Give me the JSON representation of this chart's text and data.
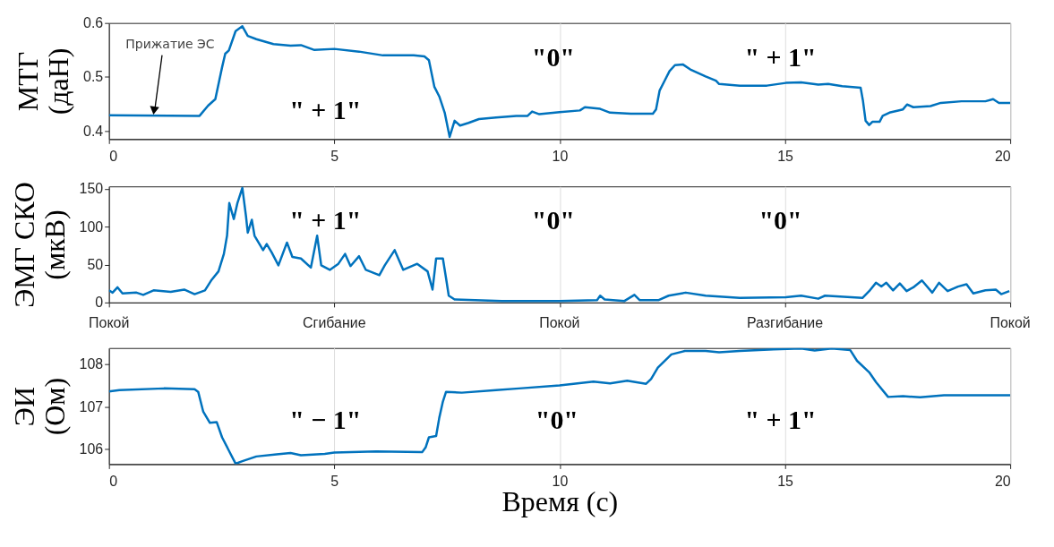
{
  "chart_data": [
    {
      "type": "line",
      "ylabel": "МТГ\n(даН)",
      "color": "#0072bd",
      "xlim": [
        0,
        20
      ],
      "xticks": [
        0,
        5,
        10,
        15,
        20
      ],
      "ylim": [
        0.385,
        0.6
      ],
      "yticks": [
        0.4,
        0.5,
        0.6
      ],
      "grid": "x",
      "line_style": "solid",
      "x": [
        0,
        2.01,
        2.2,
        2.36,
        2.51,
        2.58,
        2.66,
        2.81,
        2.96,
        3.08,
        3.27,
        3.65,
        4.03,
        4.26,
        4.56,
        5.0,
        5.55,
        6.08,
        6.76,
        7.0,
        7.1,
        7.22,
        7.33,
        7.45,
        7.56,
        7.67,
        7.79,
        7.98,
        8.21,
        8.59,
        9.04,
        9.29,
        9.39,
        9.55,
        10.0,
        10.45,
        10.56,
        10.9,
        11.12,
        11.58,
        12.07,
        12.14,
        12.22,
        12.33,
        12.44,
        12.56,
        12.74,
        12.9,
        13.24,
        13.47,
        13.54,
        14.0,
        14.6,
        15.02,
        15.36,
        15.74,
        15.96,
        16.27,
        16.68,
        16.73,
        16.79,
        16.87,
        16.94,
        17.1,
        17.17,
        17.32,
        17.62,
        17.71,
        17.85,
        18.23,
        18.46,
        18.92,
        19.45,
        19.62,
        19.75,
        20
      ],
      "values": [
        0.429,
        0.428,
        0.447,
        0.459,
        0.518,
        0.543,
        0.549,
        0.585,
        0.594,
        0.576,
        0.57,
        0.561,
        0.558,
        0.559,
        0.55,
        0.552,
        0.547,
        0.54,
        0.54,
        0.538,
        0.531,
        0.482,
        0.464,
        0.434,
        0.389,
        0.419,
        0.41,
        0.415,
        0.422,
        0.425,
        0.428,
        0.428,
        0.436,
        0.431,
        0.435,
        0.438,
        0.444,
        0.441,
        0.434,
        0.432,
        0.432,
        0.44,
        0.475,
        0.493,
        0.511,
        0.522,
        0.523,
        0.514,
        0.501,
        0.493,
        0.487,
        0.484,
        0.484,
        0.489,
        0.49,
        0.486,
        0.487,
        0.483,
        0.48,
        0.457,
        0.419,
        0.411,
        0.417,
        0.417,
        0.428,
        0.434,
        0.44,
        0.449,
        0.444,
        0.446,
        0.452,
        0.455,
        0.455,
        0.459,
        0.452,
        0.452
      ],
      "annotations": [
        {
          "text": "Прижатие ЭС",
          "x": 1.0,
          "y": 0.428
        },
        "\" + 1\"",
        "\"0\"",
        "\" + 1\""
      ]
    },
    {
      "type": "line",
      "ylabel": "ЭМГ СКО\n(мкВ)",
      "color": "#0072bd",
      "xlim": [
        0,
        20
      ],
      "xticks": [
        {
          "value": 0,
          "label": null
        },
        {
          "value": 5,
          "label": null
        },
        {
          "value": 10,
          "label": null
        },
        {
          "value": 15,
          "label": null
        },
        {
          "value": 20,
          "label": null
        }
      ],
      "tick_labels": "y",
      "ylim": [
        0,
        153
      ],
      "yticks": [
        0,
        50,
        100,
        150
      ],
      "grid": "x",
      "line_style": "solid",
      "x": [
        0,
        0.08,
        0.19,
        0.3,
        0.61,
        0.76,
        0.99,
        1.37,
        1.67,
        1.9,
        2.13,
        2.28,
        2.43,
        2.55,
        2.62,
        2.67,
        2.77,
        2.85,
        2.96,
        3.04,
        3.08,
        3.17,
        3.23,
        3.34,
        3.42,
        3.5,
        3.61,
        3.76,
        3.95,
        4.07,
        4.26,
        4.48,
        4.62,
        4.71,
        4.9,
        5.09,
        5.24,
        5.36,
        5.55,
        5.7,
        6.0,
        6.12,
        6.34,
        6.53,
        6.84,
        7.07,
        7.18,
        7.26,
        7.41,
        7.48,
        7.54,
        7.67,
        8.72,
        10.0,
        10.83,
        10.9,
        11.0,
        11.44,
        11.66,
        11.78,
        12.19,
        12.42,
        12.8,
        13.24,
        14.0,
        15.02,
        15.36,
        15.74,
        15.89,
        16.72,
        16.87,
        17.02,
        17.14,
        17.25,
        17.4,
        17.55,
        17.7,
        17.85,
        18.04,
        18.27,
        18.42,
        18.61,
        18.84,
        19.03,
        19.18,
        19.45,
        19.68,
        19.8,
        19.98
      ],
      "values": [
        16,
        13,
        20,
        12,
        13,
        10,
        16,
        14,
        17,
        11,
        16,
        30,
        41,
        64,
        88,
        131,
        110,
        131,
        151,
        114,
        92,
        109,
        88,
        77,
        69,
        77,
        66,
        49,
        79,
        60,
        58,
        46,
        88,
        49,
        43,
        51,
        64,
        48,
        61,
        43,
        36,
        49,
        69,
        43,
        51,
        41,
        17,
        58,
        58,
        32,
        9,
        4,
        2,
        2,
        3,
        9,
        4,
        2,
        10,
        3,
        3,
        9,
        13,
        9,
        6,
        7,
        9,
        5,
        9,
        6,
        15,
        26,
        21,
        26,
        16,
        25,
        15,
        20,
        29,
        13,
        26,
        15,
        21,
        24,
        12,
        16,
        17,
        11,
        15
      ],
      "annotations": [
        "\" + 1\"",
        "\"0\"",
        "\"0\"",
        "Покой",
        "Сгибание",
        "Покой",
        "Разгибание",
        "Покой"
      ]
    },
    {
      "type": "line",
      "ylabel": "ЭИ\n(Ом)",
      "xlabel": "Время (с)",
      "color": "#0072bd",
      "xlim": [
        0,
        20
      ],
      "xticks": [
        0,
        5,
        10,
        15,
        20
      ],
      "ylim": [
        105.65,
        108.38
      ],
      "yticks": [
        106,
        107,
        108
      ],
      "grid": "x",
      "line_style": "solid",
      "x": [
        0,
        0.23,
        1.22,
        1.9,
        1.98,
        2.09,
        2.24,
        2.39,
        2.51,
        2.66,
        2.81,
        2.96,
        3.27,
        3.72,
        4.03,
        4.26,
        4.79,
        5.0,
        5.93,
        6.95,
        7.03,
        7.1,
        7.26,
        7.33,
        7.41,
        7.48,
        7.83,
        8.59,
        9.1,
        10.0,
        10.75,
        11.12,
        11.5,
        11.92,
        12.03,
        12.18,
        12.48,
        12.78,
        13.24,
        13.54,
        14.0,
        14.75,
        15.36,
        15.66,
        16.04,
        16.45,
        16.6,
        16.87,
        17.02,
        17.29,
        17.62,
        18.0,
        18.53,
        19.29,
        20
      ],
      "values": [
        107.36,
        107.39,
        107.43,
        107.41,
        107.35,
        106.89,
        106.62,
        106.64,
        106.28,
        105.97,
        105.66,
        105.72,
        105.83,
        105.88,
        105.91,
        105.86,
        105.89,
        105.92,
        105.95,
        105.93,
        106.05,
        106.28,
        106.31,
        106.74,
        107.12,
        107.35,
        107.33,
        107.39,
        107.43,
        107.5,
        107.59,
        107.55,
        107.61,
        107.54,
        107.65,
        107.92,
        108.23,
        108.31,
        108.31,
        108.28,
        108.31,
        108.35,
        108.37,
        108.32,
        108.37,
        108.33,
        108.08,
        107.81,
        107.58,
        107.23,
        107.25,
        107.22,
        107.27,
        107.27,
        107.27
      ],
      "annotations": [
        "\" − 1\"",
        "\"0\"",
        "\" + 1\""
      ]
    }
  ]
}
